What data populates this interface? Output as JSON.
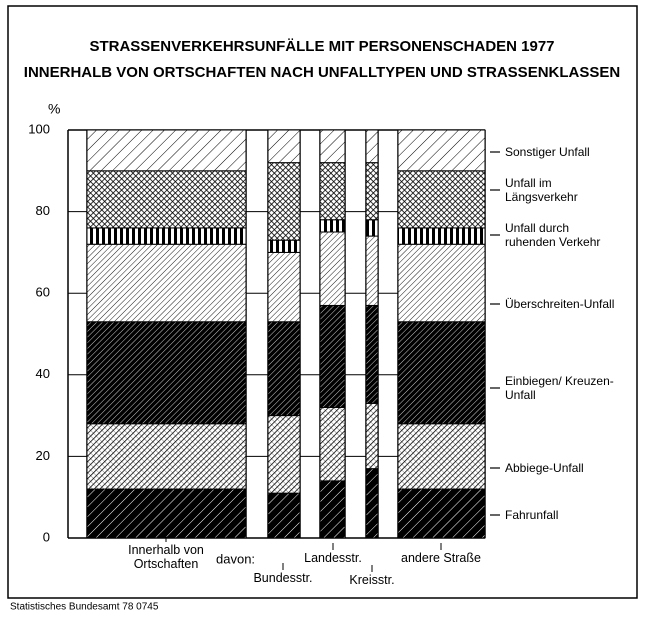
{
  "chart_data": {
    "type": "stacked-bar",
    "title": "STRASSENVERKEHRSUNFÄLLE MIT PERSONENSCHADEN 1977",
    "subtitle": "INNERHALB VON ORTSCHAFTEN NACH UNFALLTYPEN UND STRASSENKLASSEN",
    "y_label": "%",
    "annotation": "davon:",
    "source": "Statistisches Bundesamt 78 0745",
    "categories": [
      "Innerhalb von Ortschaften",
      "Bundesstr.",
      "Landesstr.",
      "Kreisstr.",
      "andere Straße"
    ],
    "ylim": [
      0,
      100
    ],
    "yticks": [
      0,
      20,
      40,
      60,
      80,
      100
    ],
    "grid": true,
    "series": [
      {
        "name": "Fahrunfall",
        "pattern": "black-hatch",
        "values": [
          12,
          11,
          14,
          17,
          12
        ]
      },
      {
        "name": "Abbiege-Unfall",
        "pattern": "grey-cross",
        "values": [
          16,
          19,
          18,
          16,
          16
        ]
      },
      {
        "name": "Einbiegen/ Kreuzen-Unfall",
        "pattern": "dark-hatch",
        "values": [
          25,
          23,
          25,
          24,
          25
        ]
      },
      {
        "name": "Überschreiten-Unfall",
        "pattern": "fine-hatch",
        "values": [
          19,
          17,
          18,
          17,
          19
        ]
      },
      {
        "name": "Unfall durch ruhenden Verkehr",
        "pattern": "vertical",
        "values": [
          4,
          3,
          3,
          4,
          4
        ]
      },
      {
        "name": "Unfall im Längsverkehr",
        "pattern": "crosshatch",
        "values": [
          14,
          19,
          14,
          14,
          14
        ]
      },
      {
        "name": "Sonstiger Unfall",
        "pattern": "sparse-hatch",
        "values": [
          10,
          8,
          8,
          8,
          10
        ]
      }
    ]
  }
}
